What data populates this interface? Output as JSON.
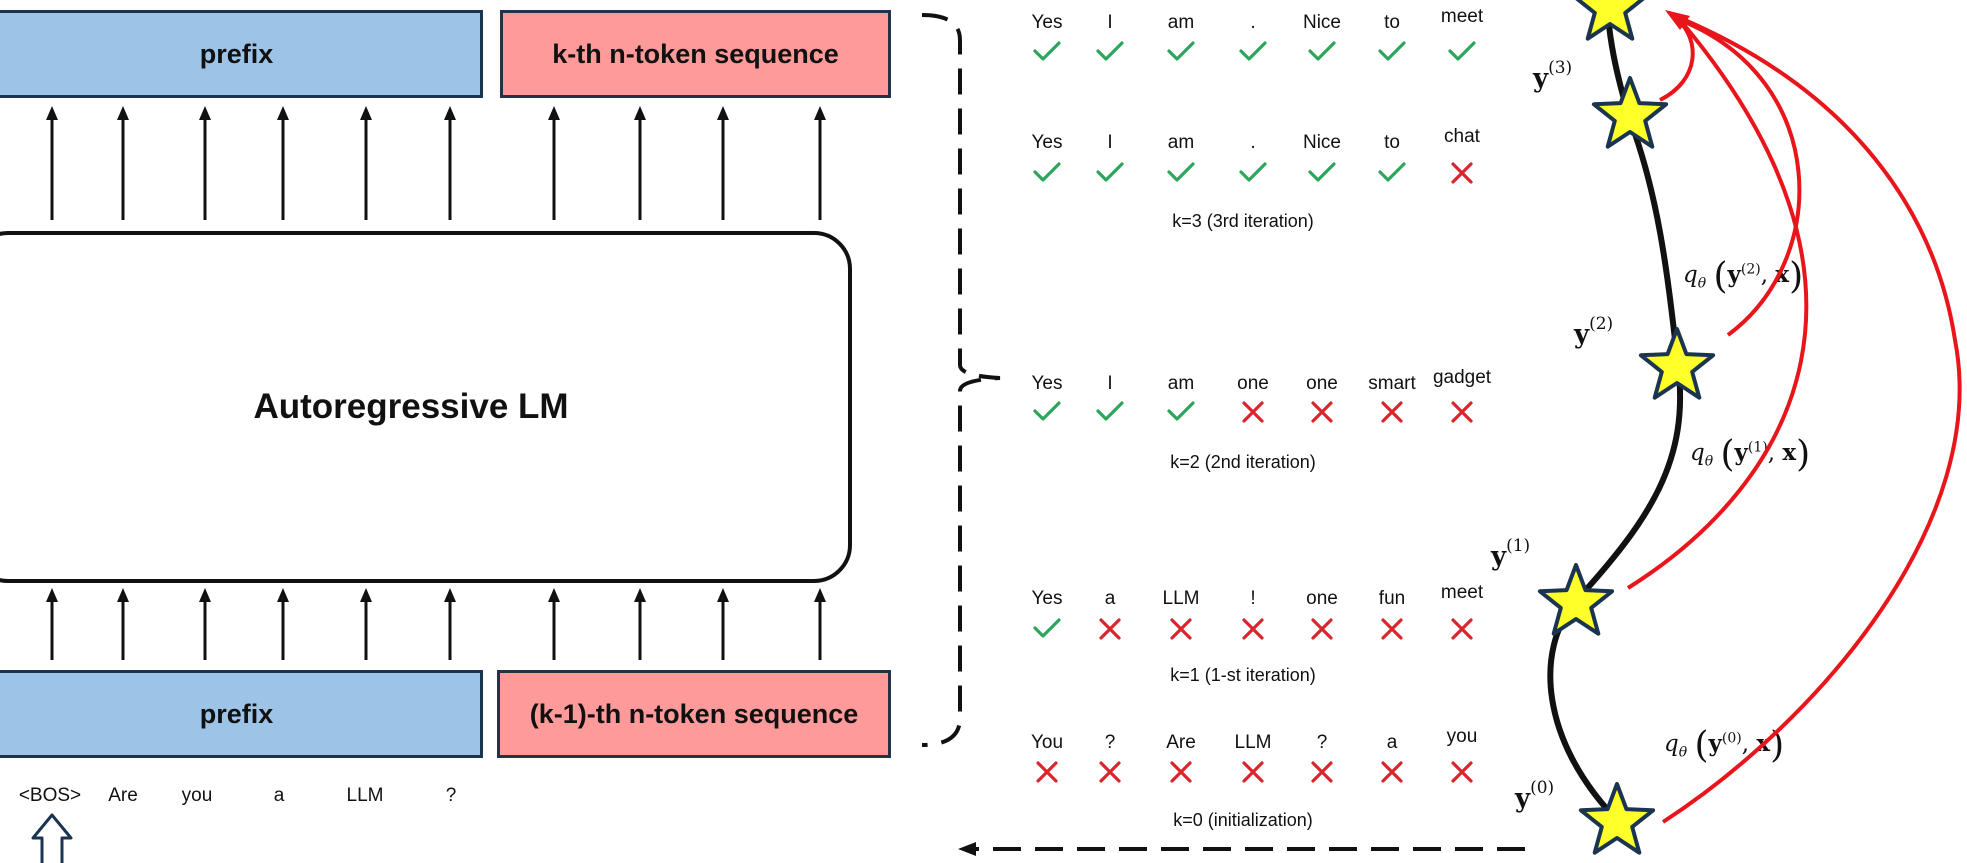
{
  "boxes": {
    "top_prefix": "prefix",
    "top_sequence": "k-th n-token sequence",
    "bottom_prefix": "prefix",
    "bottom_sequence": "(k-1)-th n-token sequence",
    "model": "Autoregressive LM"
  },
  "input_tokens": [
    "<BOS>",
    "Are",
    "you",
    "a",
    "LLM",
    "?"
  ],
  "iterations": [
    {
      "tokens": [
        "Yes",
        "I",
        "am",
        ".",
        "Nice",
        "to",
        "meet"
      ],
      "marks": [
        "check",
        "check",
        "check",
        "check",
        "check",
        "check",
        "check"
      ],
      "label": ""
    },
    {
      "tokens": [
        "Yes",
        "I",
        "am",
        ".",
        "Nice",
        "to",
        "chat"
      ],
      "marks": [
        "check",
        "check",
        "check",
        "check",
        "check",
        "check",
        "cross"
      ],
      "label": "k=3 (3rd iteration)"
    },
    {
      "tokens": [
        "Yes",
        "I",
        "am",
        "one",
        "one",
        "smart",
        "gadget"
      ],
      "marks": [
        "check",
        "check",
        "check",
        "cross",
        "cross",
        "cross",
        "cross"
      ],
      "label": "k=2 (2nd iteration)"
    },
    {
      "tokens": [
        "Yes",
        "a",
        "LLM",
        "!",
        "one",
        "fun",
        "meet"
      ],
      "marks": [
        "check",
        "cross",
        "cross",
        "cross",
        "cross",
        "cross",
        "cross"
      ],
      "label": "k=1 (1-st iteration)"
    },
    {
      "tokens": [
        "You",
        "?",
        "Are",
        "LLM",
        "?",
        "a",
        "you"
      ],
      "marks": [
        "cross",
        "cross",
        "cross",
        "cross",
        "cross",
        "cross",
        "cross"
      ],
      "label": "k=0 (initialization)"
    }
  ],
  "trajectory": {
    "states": [
      {
        "sym": "y",
        "sup": "(3)"
      },
      {
        "sym": "y",
        "sup": "(2)"
      },
      {
        "sym": "y",
        "sup": "(1)"
      },
      {
        "sym": "y",
        "sup": "(0)"
      }
    ],
    "consistency": [
      {
        "q": "q",
        "sub": "θ",
        "sup": "(2)",
        "x": "x"
      },
      {
        "q": "q",
        "sub": "θ",
        "sup": "(1)",
        "x": "x"
      },
      {
        "q": "q",
        "sub": "θ",
        "sup": "(0)",
        "x": "x"
      }
    ]
  },
  "colors": {
    "prefix": "#9dc3e6",
    "sequence": "#ff9a9a",
    "check": "#2ca65a",
    "cross": "#d9262c",
    "star": "#ffff2a",
    "curve": "#e8151b"
  }
}
